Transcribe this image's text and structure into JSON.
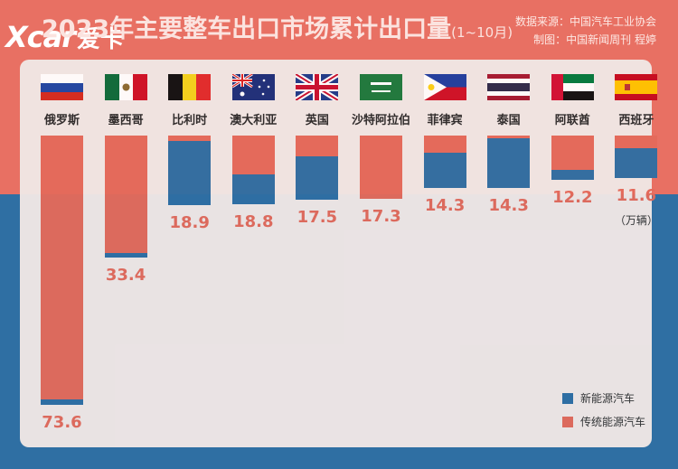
{
  "header": {
    "title": "2023年主要整车出口市场累计出口量",
    "title_suffix": "(1~10月)",
    "source_line1": "数据来源：中国汽车工业协会",
    "source_line2": "制图：中国新闻周刊 程婷"
  },
  "logo": {
    "text_latin": "Xcar",
    "text_zh": "爱卡"
  },
  "unit_label": "（万辆）",
  "colors": {
    "nev": "#2e6ea3",
    "traditional": "#e46a5b",
    "panel": "#f1e8e6",
    "top_bg": "#e87063",
    "bottom_bg": "#2f6fa3"
  },
  "chart_data": {
    "type": "bar",
    "stacked": true,
    "title": "2023年主要整车出口市场累计出口量(1~10月)",
    "unit": "万辆",
    "categories": [
      "俄罗斯",
      "墨西哥",
      "比利时",
      "澳大利亚",
      "英国",
      "沙特阿拉伯",
      "菲律宾",
      "泰国",
      "阿联酋",
      "西班牙"
    ],
    "flags": [
      "russia",
      "mexico",
      "belgium",
      "australia",
      "uk",
      "saudi-arabia",
      "philippines",
      "thailand",
      "uae",
      "spain"
    ],
    "totals": [
      73.6,
      33.4,
      18.9,
      18.8,
      17.5,
      17.3,
      14.3,
      14.3,
      12.2,
      11.6
    ],
    "series": [
      {
        "name": "新能源汽车",
        "color": "#2e6ea3",
        "values": [
          1.6,
          1.3,
          17.3,
          8.3,
          11.9,
          0.0,
          9.5,
          13.5,
          2.8,
          8.2
        ]
      },
      {
        "name": "传统能源汽车",
        "color": "#e46a5b",
        "values": [
          72.0,
          32.1,
          1.6,
          10.5,
          5.6,
          17.3,
          4.8,
          0.8,
          9.4,
          3.4
        ]
      }
    ],
    "legend_position": "bottom-right"
  }
}
